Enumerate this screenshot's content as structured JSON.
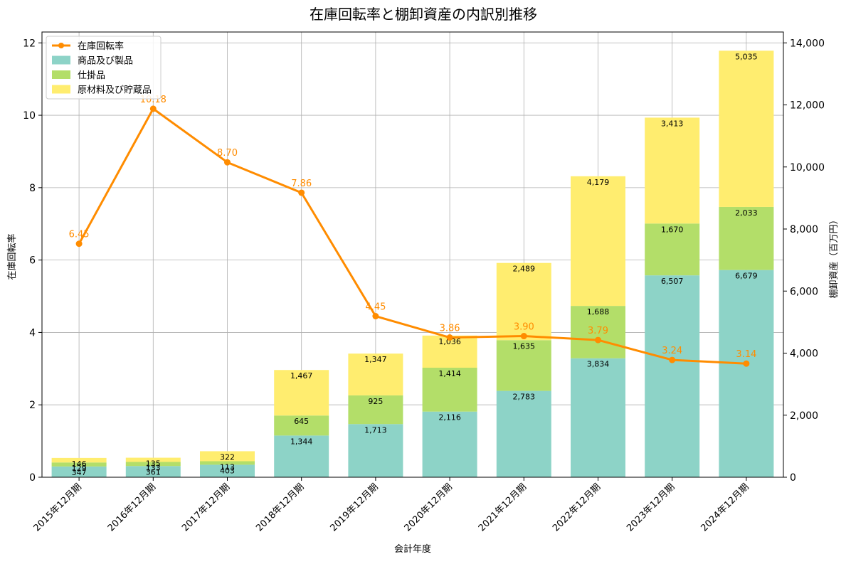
{
  "chart_data": {
    "type": "bar",
    "title": "在庫回転率と棚卸資産の内訳別推移",
    "xlabel": "会計年度",
    "ylabel_left": "在庫回転率",
    "ylabel_right": "棚卸資産（百万円）",
    "categories": [
      "2015年12月期",
      "2016年12月期",
      "2017年12月期",
      "2018年12月期",
      "2019年12月期",
      "2020年12月期",
      "2021年12月期",
      "2022年12月期",
      "2023年12月期",
      "2024年12月期"
    ],
    "left_axis": {
      "min": 0,
      "max": 12.3,
      "ticks": [
        0,
        2,
        4,
        6,
        8,
        10,
        12
      ]
    },
    "right_axis": {
      "min": 0,
      "max": 14350,
      "ticks": [
        0,
        2000,
        4000,
        6000,
        8000,
        10000,
        12000,
        14000
      ],
      "tick_labels": [
        "0",
        "2,000",
        "4,000",
        "6,000",
        "8,000",
        "10,000",
        "12,000",
        "14,000"
      ]
    },
    "grid": true,
    "legend_position": "top-left",
    "series": [
      {
        "name": "商品及び製品",
        "type": "bar",
        "axis": "right",
        "color": "#8dd3c7",
        "values": [
          347,
          361,
          403,
          1344,
          1713,
          2116,
          2783,
          3834,
          6507,
          6679
        ],
        "labels": [
          "347",
          "361",
          "403",
          "1,344",
          "1,713",
          "2,116",
          "2,783",
          "3,834",
          "6,507",
          "6,679"
        ]
      },
      {
        "name": "仕掛品",
        "type": "bar",
        "axis": "right",
        "color": "#b3de69",
        "values": [
          129,
          133,
          113,
          645,
          925,
          1414,
          1635,
          1688,
          1670,
          2033
        ],
        "labels": [
          "129",
          "133",
          "113",
          "645",
          "925",
          "1,414",
          "1,635",
          "1,688",
          "1,670",
          "2,033"
        ]
      },
      {
        "name": "原材料及び貯蔵品",
        "type": "bar",
        "axis": "right",
        "color": "#ffed6f",
        "values": [
          146,
          135,
          322,
          1467,
          1347,
          1036,
          2489,
          4179,
          3413,
          5035
        ],
        "labels": [
          "146",
          "135",
          "322",
          "1,467",
          "1,347",
          "1,036",
          "2,489",
          "4,179",
          "3,413",
          "5,035"
        ]
      },
      {
        "name": "在庫回転率",
        "type": "line",
        "axis": "left",
        "color": "#ff8c00",
        "values": [
          6.45,
          10.18,
          8.7,
          7.86,
          4.45,
          3.86,
          3.9,
          3.79,
          3.24,
          3.14
        ],
        "labels": [
          "6.45",
          "10.18",
          "8.70",
          "7.86",
          "4.45",
          "3.86",
          "3.90",
          "3.79",
          "3.24",
          "3.14"
        ]
      }
    ]
  }
}
